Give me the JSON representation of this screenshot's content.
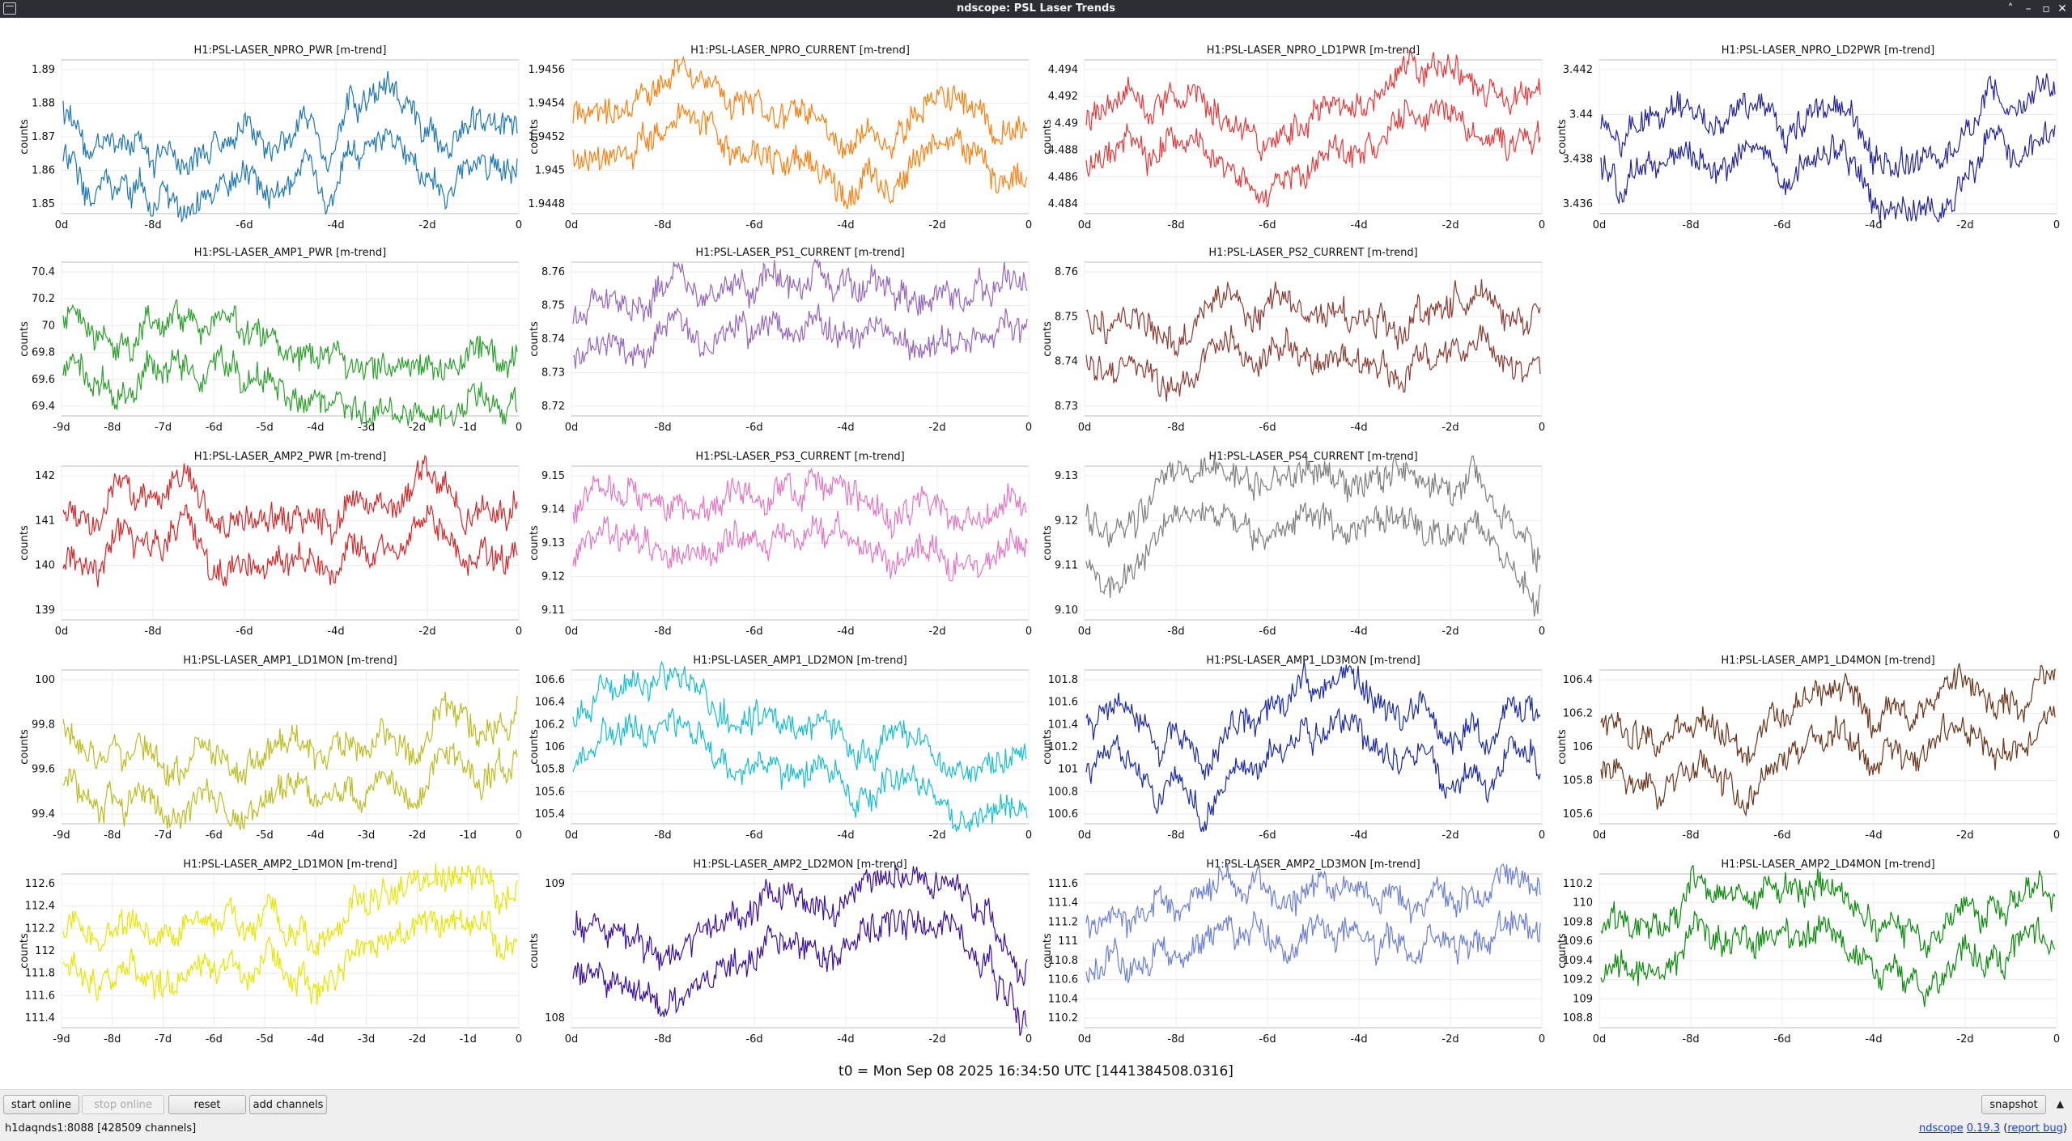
{
  "window": {
    "title": "ndscope: PSL Laser Trends",
    "buttons": [
      "˄",
      "–",
      "▫",
      "✕"
    ]
  },
  "plots": [
    {
      "title": "H1:PSL-LASER_NPRO_PWR [m-trend]",
      "ylabel": "counts",
      "color": "#1f77b4",
      "yticks": [
        "1.89",
        "1.88",
        "1.87",
        "1.86",
        "1.85"
      ],
      "xticks": [
        "0d",
        "-8d",
        "-6d",
        "-4d",
        "-2d",
        "0"
      ]
    },
    {
      "title": "H1:PSL-LASER_NPRO_CURRENT [m-trend]",
      "ylabel": "counts",
      "color": "#ff7f0e",
      "yticks": [
        "1.9456",
        "1.9454",
        "1.9452",
        "1.945",
        "1.9448"
      ],
      "xticks": [
        "0d",
        "-8d",
        "-6d",
        "-4d",
        "-2d",
        "0"
      ]
    },
    {
      "title": "H1:PSL-LASER_NPRO_LD1PWR [m-trend]",
      "ylabel": "counts",
      "color": "#e8393a",
      "yticks": [
        "4.494",
        "4.492",
        "4.49",
        "4.488",
        "4.486",
        "4.484"
      ],
      "xticks": [
        "0d",
        "-8d",
        "-6d",
        "-4d",
        "-2d",
        "0"
      ]
    },
    {
      "title": "H1:PSL-LASER_NPRO_LD2PWR [m-trend]",
      "ylabel": "counts",
      "color": "#23239a",
      "yticks": [
        "3.442",
        "3.44",
        "3.438",
        "3.436"
      ],
      "xticks": [
        "0d",
        "-8d",
        "-6d",
        "-4d",
        "-2d",
        "0"
      ]
    },
    {
      "title": "H1:PSL-LASER_AMP1_PWR [m-trend]",
      "ylabel": "counts",
      "color": "#2ca02c",
      "yticks": [
        "70.4",
        "70.2",
        "70",
        "69.8",
        "69.6",
        "69.4"
      ],
      "xticks": [
        "-9d",
        "-8d",
        "-7d",
        "-6d",
        "-5d",
        "-4d",
        "-3d",
        "-2d",
        "-1d",
        "0"
      ]
    },
    {
      "title": "H1:PSL-LASER_PS1_CURRENT [m-trend]",
      "ylabel": "counts",
      "color": "#9467bd",
      "yticks": [
        "8.76",
        "8.75",
        "8.74",
        "8.73",
        "8.72"
      ],
      "xticks": [
        "0d",
        "-8d",
        "-6d",
        "-4d",
        "-2d",
        "0"
      ]
    },
    {
      "title": "H1:PSL-LASER_PS2_CURRENT [m-trend]",
      "ylabel": "counts",
      "color": "#8c3b30",
      "yticks": [
        "8.76",
        "8.75",
        "8.74",
        "8.73"
      ],
      "xticks": [
        "0d",
        "-8d",
        "-6d",
        "-4d",
        "-2d",
        "0"
      ]
    },
    {
      "title": "H1:PSL-LASER_AMP2_PWR [m-trend]",
      "ylabel": "counts",
      "color": "#d62728",
      "yticks": [
        "142",
        "141",
        "140",
        "139"
      ],
      "xticks": [
        "0d",
        "-8d",
        "-6d",
        "-4d",
        "-2d",
        "0"
      ]
    },
    {
      "title": "H1:PSL-LASER_PS3_CURRENT [m-trend]",
      "ylabel": "counts",
      "color": "#e377c2",
      "yticks": [
        "9.15",
        "9.14",
        "9.13",
        "9.12",
        "9.11"
      ],
      "xticks": [
        "0d",
        "-8d",
        "-6d",
        "-4d",
        "-2d",
        "0"
      ]
    },
    {
      "title": "H1:PSL-LASER_PS4_CURRENT [m-trend]",
      "ylabel": "counts",
      "color": "#7f7f7f",
      "yticks": [
        "9.13",
        "9.12",
        "9.11",
        "9.10"
      ],
      "xticks": [
        "0d",
        "-8d",
        "-6d",
        "-4d",
        "-2d",
        "0"
      ]
    },
    {
      "title": "H1:PSL-LASER_AMP1_LD1MON [m-trend]",
      "ylabel": "counts",
      "color": "#bcbd22",
      "yticks": [
        "100",
        "99.8",
        "99.6",
        "99.4"
      ],
      "xticks": [
        "-9d",
        "-8d",
        "-7d",
        "-6d",
        "-5d",
        "-4d",
        "-3d",
        "-2d",
        "-1d",
        "0"
      ]
    },
    {
      "title": "H1:PSL-LASER_AMP1_LD2MON [m-trend]",
      "ylabel": "counts",
      "color": "#17becf",
      "yticks": [
        "106.6",
        "106.4",
        "106.2",
        "106",
        "105.8",
        "105.6",
        "105.4"
      ],
      "xticks": [
        "0d",
        "-8d",
        "-6d",
        "-4d",
        "-2d",
        "0"
      ]
    },
    {
      "title": "H1:PSL-LASER_AMP1_LD3MON [m-trend]",
      "ylabel": "counts",
      "color": "#1a2ba6",
      "yticks": [
        "101.8",
        "101.6",
        "101.4",
        "101.2",
        "101",
        "100.8",
        "100.6"
      ],
      "xticks": [
        "0d",
        "-8d",
        "-6d",
        "-4d",
        "-2d",
        "0"
      ]
    },
    {
      "title": "H1:PSL-LASER_AMP1_LD4MON [m-trend]",
      "ylabel": "counts",
      "color": "#6b3519",
      "yticks": [
        "106.4",
        "106.2",
        "106",
        "105.8",
        "105.6"
      ],
      "xticks": [
        "0d",
        "-8d",
        "-6d",
        "-4d",
        "-2d",
        "0"
      ]
    },
    {
      "title": "H1:PSL-LASER_AMP2_LD1MON [m-trend]",
      "ylabel": "counts",
      "color": "#e6e600",
      "yticks": [
        "112.6",
        "112.4",
        "112.2",
        "112",
        "111.8",
        "111.6",
        "111.4"
      ],
      "xticks": [
        "-9d",
        "-8d",
        "-7d",
        "-6d",
        "-5d",
        "-4d",
        "-3d",
        "-2d",
        "-1d",
        "0"
      ]
    },
    {
      "title": "H1:PSL-LASER_AMP2_LD2MON [m-trend]",
      "ylabel": "counts",
      "color": "#3b0fa0",
      "yticks": [
        "109",
        "108"
      ],
      "xticks": [
        "0d",
        "-8d",
        "-6d",
        "-4d",
        "-2d",
        "0"
      ]
    },
    {
      "title": "H1:PSL-LASER_AMP2_LD3MON [m-trend]",
      "ylabel": "counts",
      "color": "#6b7fd6",
      "yticks": [
        "111.6",
        "111.4",
        "111.2",
        "111",
        "110.8",
        "110.6",
        "110.4",
        "110.2"
      ],
      "xticks": [
        "0d",
        "-8d",
        "-6d",
        "-4d",
        "-2d",
        "0"
      ]
    },
    {
      "title": "H1:PSL-LASER_AMP2_LD4MON [m-trend]",
      "ylabel": "counts",
      "color": "#0c8c0c",
      "yticks": [
        "110.2",
        "110",
        "109.8",
        "109.6",
        "109.4",
        "109.2",
        "109",
        "108.8"
      ],
      "xticks": [
        "0d",
        "-8d",
        "-6d",
        "-4d",
        "-2d",
        "0"
      ]
    }
  ],
  "t0_label": "t0 = Mon Sep 08 2025 16:34:50 UTC [1441384508.0316]",
  "buttons": {
    "start_online": "start online",
    "stop_online": "stop online",
    "reset": "reset",
    "add_channels": "add channels",
    "snapshot": "snapshot"
  },
  "status": {
    "server": "h1daqnds1:8088  [428509 channels]",
    "app_name": "ndscope",
    "version": "0.19.3",
    "report_bug": "report bug"
  }
}
